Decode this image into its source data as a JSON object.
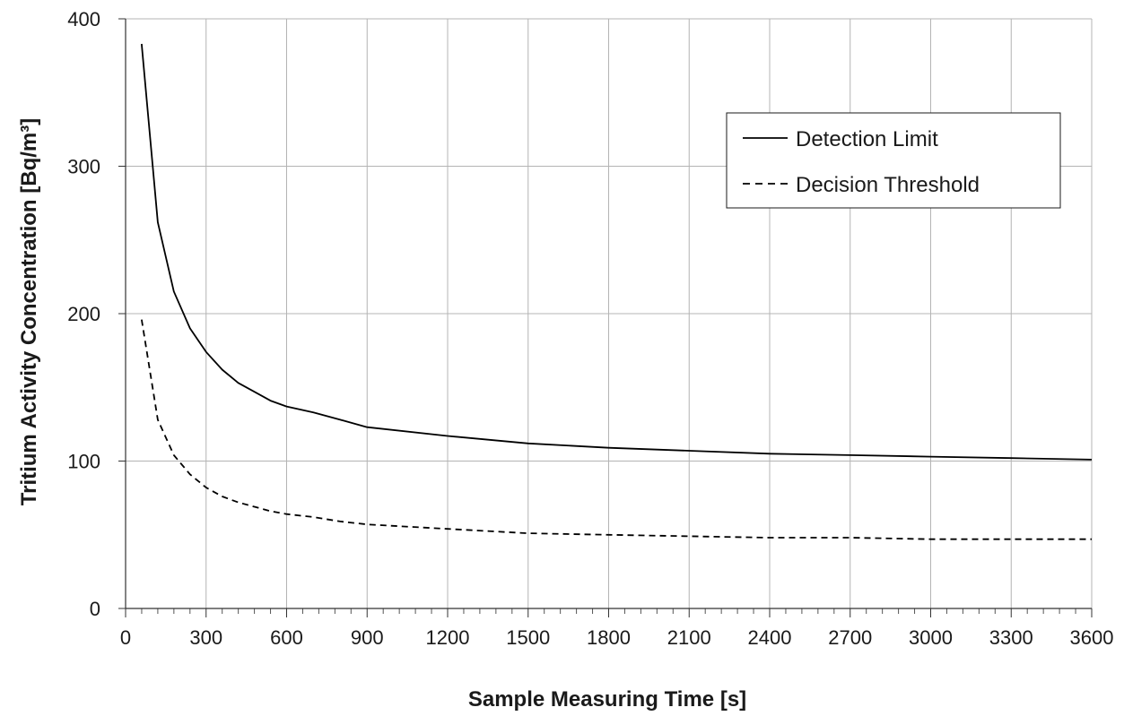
{
  "chart_data": {
    "type": "line",
    "xlabel": "Sample Measuring Time  [s]",
    "ylabel": "Tritium  Activity Concentration  [Bq/m³]",
    "xlim": [
      0,
      3600
    ],
    "ylim": [
      0,
      400
    ],
    "x_ticks": [
      0,
      300,
      600,
      900,
      1200,
      1500,
      1800,
      2100,
      2400,
      2700,
      3000,
      3300,
      3600
    ],
    "y_ticks": [
      0,
      100,
      200,
      300,
      400
    ],
    "grid": true,
    "legend_position": "top-right",
    "series": [
      {
        "name": "Detection Limit",
        "style": "solid",
        "color": "#000000",
        "points": [
          [
            60,
            383
          ],
          [
            120,
            262
          ],
          [
            180,
            215
          ],
          [
            240,
            190
          ],
          [
            300,
            174
          ],
          [
            360,
            162
          ],
          [
            420,
            153
          ],
          [
            480,
            147
          ],
          [
            540,
            141
          ],
          [
            600,
            137
          ],
          [
            700,
            133
          ],
          [
            800,
            128
          ],
          [
            900,
            123
          ],
          [
            1200,
            117
          ],
          [
            1500,
            112
          ],
          [
            1800,
            109
          ],
          [
            2100,
            107
          ],
          [
            2400,
            105
          ],
          [
            2700,
            104
          ],
          [
            3000,
            103
          ],
          [
            3300,
            102
          ],
          [
            3600,
            101
          ]
        ]
      },
      {
        "name": "Decision Threshold",
        "style": "dashed",
        "color": "#000000",
        "points": [
          [
            60,
            196
          ],
          [
            120,
            128
          ],
          [
            180,
            104
          ],
          [
            240,
            91
          ],
          [
            300,
            82
          ],
          [
            360,
            76
          ],
          [
            420,
            72
          ],
          [
            480,
            69
          ],
          [
            540,
            66
          ],
          [
            600,
            64
          ],
          [
            700,
            62
          ],
          [
            800,
            59
          ],
          [
            900,
            57
          ],
          [
            1200,
            54
          ],
          [
            1500,
            51
          ],
          [
            1800,
            50
          ],
          [
            2100,
            49
          ],
          [
            2400,
            48
          ],
          [
            2700,
            48
          ],
          [
            3000,
            47
          ],
          [
            3300,
            47
          ],
          [
            3600,
            47
          ]
        ]
      }
    ]
  }
}
